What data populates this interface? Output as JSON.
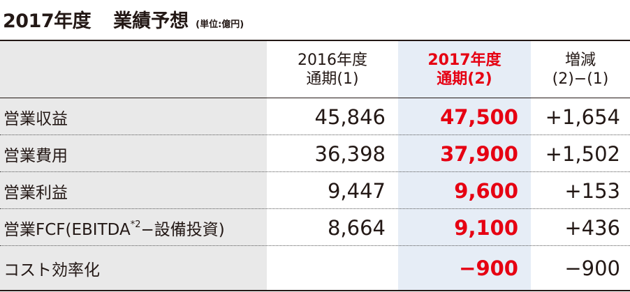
{
  "title": {
    "year": "2017年度",
    "main": "業績予想",
    "unit": "(単位:億円)"
  },
  "header": {
    "col1_line1": "2016年度",
    "col1_line2": "通期(1)",
    "col2_line1": "2017年度",
    "col2_line2": "通期(2)",
    "col3_line1": "増減",
    "col3_line2": "(2)−(1)"
  },
  "rows": [
    {
      "label": "営業収益",
      "v2016": "45,846",
      "v2017": "47,500",
      "diff": "+1,654"
    },
    {
      "label": "営業費用",
      "v2016": "36,398",
      "v2017": "37,900",
      "diff": "+1,502"
    },
    {
      "label": "営業利益",
      "v2016": "9,447",
      "v2017": "9,600",
      "diff": "+153"
    },
    {
      "label_pre": "営業FCF(EBITDA",
      "label_sup": "*2",
      "label_post": "−設備投資)",
      "v2016": "8,664",
      "v2017": "9,100",
      "diff": "+436"
    },
    {
      "label": "コスト効率化",
      "v2016": "",
      "v2017": "−900",
      "diff": "−900"
    }
  ],
  "colors": {
    "accent": "#e60012",
    "highlight_bg": "#e6edf6",
    "label_bg": "#e9e9e9",
    "text": "#231815"
  }
}
